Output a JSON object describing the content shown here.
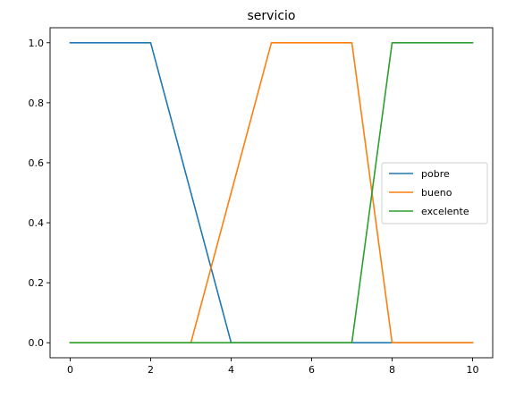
{
  "chart_data": {
    "type": "line",
    "title": "servicio",
    "xlabel": "",
    "ylabel": "",
    "xlim": [
      -0.5,
      10.5
    ],
    "ylim": [
      -0.05,
      1.05
    ],
    "xticks": [
      0,
      2,
      4,
      6,
      8,
      10
    ],
    "xtick_labels": [
      "0",
      "2",
      "4",
      "6",
      "8",
      "10"
    ],
    "yticks": [
      0.0,
      0.2,
      0.4,
      0.6,
      0.8,
      1.0
    ],
    "ytick_labels": [
      "0.0",
      "0.2",
      "0.4",
      "0.6",
      "0.8",
      "1.0"
    ],
    "grid": false,
    "legend_position": "center-right",
    "series": [
      {
        "name": "pobre",
        "color": "#1f77b4",
        "x": [
          0,
          2,
          4,
          10
        ],
        "y": [
          1,
          1,
          0,
          0
        ]
      },
      {
        "name": "bueno",
        "color": "#ff7f0e",
        "x": [
          0,
          3,
          5,
          7,
          8,
          10
        ],
        "y": [
          0,
          0,
          1,
          1,
          0,
          0
        ]
      },
      {
        "name": "excelente",
        "color": "#2ca02c",
        "x": [
          0,
          7,
          8,
          10
        ],
        "y": [
          0,
          0,
          1,
          1
        ]
      }
    ]
  }
}
